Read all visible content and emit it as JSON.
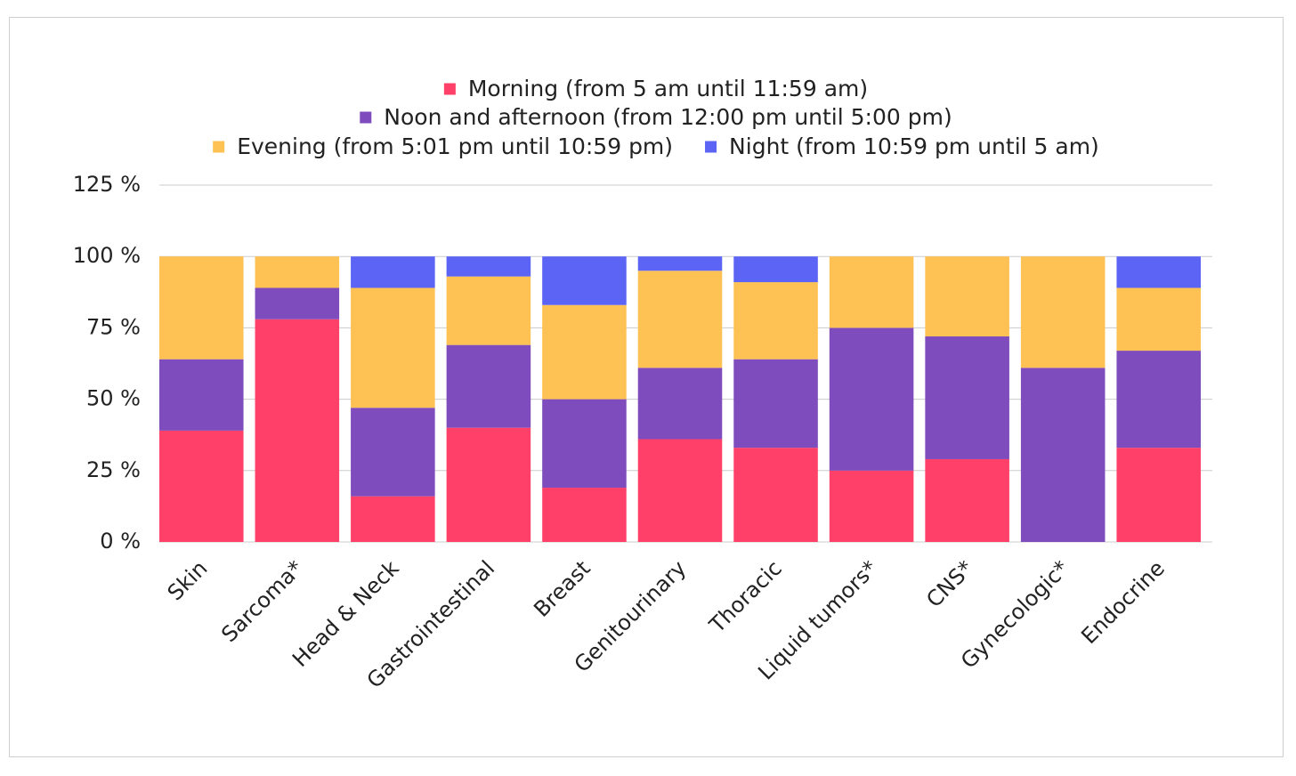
{
  "chart_data": {
    "type": "bar",
    "stacked": true,
    "categories": [
      "Skin",
      "Sarcoma*",
      "Head & Neck",
      "Gastrointestinal",
      "Breast",
      "Genitourinary",
      "Thoracic",
      "Liquid tumors*",
      "CNS*",
      "Gynecologic*",
      "Endocrine"
    ],
    "series": [
      {
        "name": "Morning (from 5 am until 11:59 am)",
        "color": "#ff4069",
        "values": [
          39,
          78,
          16,
          40,
          19,
          36,
          33,
          25,
          29,
          0,
          33
        ]
      },
      {
        "name": "Noon and afternoon (from 12:00 pm until 5:00 pm)",
        "color": "#7f4cbd",
        "values": [
          25,
          11,
          31,
          29,
          31,
          25,
          31,
          50,
          43,
          61,
          34
        ]
      },
      {
        "name": "Evening (from 5:01 pm until 10:59 pm)",
        "color": "#fdc154",
        "values": [
          36,
          11,
          42,
          24,
          33,
          34,
          27,
          25,
          28,
          39,
          22
        ]
      },
      {
        "name": "Night (from 10:59 pm until 5 am)",
        "color": "#5b64f5",
        "values": [
          0,
          0,
          11,
          7,
          17,
          5,
          9,
          0,
          0,
          0,
          11
        ]
      }
    ],
    "yticks": [
      "0 %",
      "25 %",
      "50 %",
      "75 %",
      "100 %",
      "125 %"
    ],
    "ylim": [
      0,
      125
    ],
    "grid": true,
    "legend_position": "top-center"
  }
}
